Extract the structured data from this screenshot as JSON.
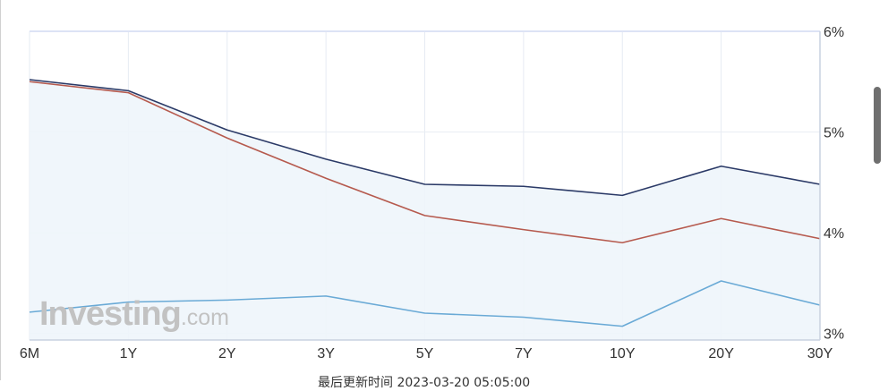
{
  "watermark": {
    "brand": "Investing",
    "suffix": ".com"
  },
  "footer": {
    "updated": "最后更新时间  2023-03-20 05:05:00"
  },
  "chart_data": {
    "type": "line",
    "title": "",
    "xlabel": "",
    "ylabel": "",
    "categories": [
      "6M",
      "1Y",
      "2Y",
      "3Y",
      "5Y",
      "7Y",
      "10Y",
      "20Y",
      "30Y"
    ],
    "ylim": [
      2.93,
      6.0
    ],
    "y_ticks": [
      3,
      4,
      5,
      6
    ],
    "y_tick_labels": [
      "3%",
      "4%",
      "5%",
      "6%"
    ],
    "grid": true,
    "y_axis_position": "right",
    "series": [
      {
        "name": "series-navy",
        "color": "#2b3a67",
        "fill": true,
        "values": [
          5.52,
          5.41,
          5.02,
          4.73,
          4.48,
          4.46,
          4.37,
          4.66,
          4.48
        ]
      },
      {
        "name": "series-red",
        "color": "#b65a4e",
        "fill": false,
        "values": [
          5.5,
          5.39,
          4.94,
          4.54,
          4.17,
          4.03,
          3.9,
          4.14,
          3.94
        ]
      },
      {
        "name": "series-blue",
        "color": "#6aaad6",
        "fill": false,
        "values": [
          3.21,
          3.31,
          3.33,
          3.37,
          3.2,
          3.16,
          3.07,
          3.52,
          3.28
        ]
      }
    ]
  }
}
